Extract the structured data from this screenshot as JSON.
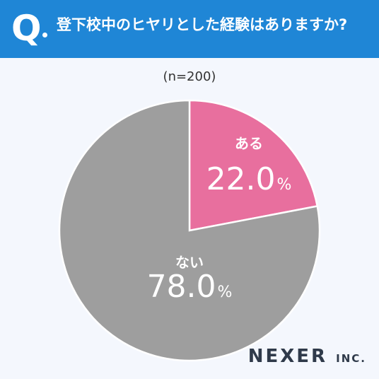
{
  "header": {
    "mark": "Q",
    "question": "登下校中のヒヤリとした経験はありますか?"
  },
  "sample_label": "(n=200)",
  "brand": {
    "name": "NEXER",
    "suffix": "INC."
  },
  "colors": {
    "header": "#1f86d6",
    "yes": "#e86f9e",
    "no": "#9e9e9e",
    "background": "#f4f7fd"
  },
  "chart_data": {
    "type": "pie",
    "title": "登下校中のヒヤリとした経験はありますか?",
    "categories": [
      "ある",
      "ない"
    ],
    "values": [
      22.0,
      78.0
    ],
    "value_labels": [
      "22.0",
      "78.0"
    ],
    "unit": "%",
    "legend": "none"
  }
}
